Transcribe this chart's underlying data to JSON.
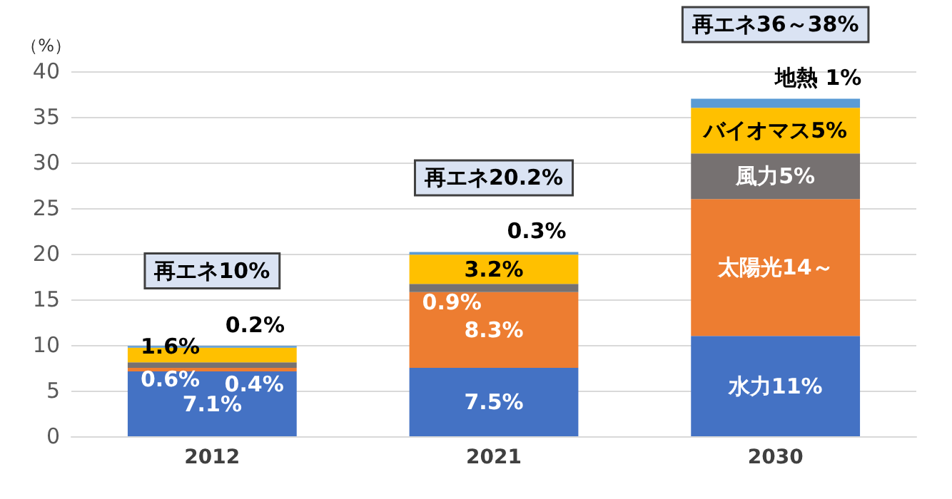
{
  "chart_data": {
    "type": "bar",
    "stacked": true,
    "ylabel": "（%）",
    "categories": [
      "2012",
      "2021",
      "2030"
    ],
    "series": [
      {
        "color": "#4472c4",
        "values": [
          7.1,
          7.5,
          11
        ],
        "value_labels": [
          "7.1%",
          "7.5%",
          "水力11%"
        ]
      },
      {
        "color": "#ed7d31",
        "values": [
          0.4,
          8.3,
          15
        ],
        "value_labels": [
          "0.4%",
          "8.3%",
          "太陽光14～"
        ]
      },
      {
        "color": "#767171",
        "values": [
          0.6,
          0.9,
          5
        ],
        "value_labels": [
          "0.6%",
          "0.9%",
          "風力5%"
        ]
      },
      {
        "color": "#ffc000",
        "values": [
          1.6,
          3.2,
          5
        ],
        "value_labels": [
          "1.6%",
          "3.2%",
          "バイオマス5%"
        ]
      },
      {
        "color": "#5b9bd5",
        "values": [
          0.2,
          0.3,
          1
        ],
        "value_labels": [
          "0.2%",
          "0.3%",
          "地熱 1%"
        ]
      }
    ],
    "ylim": [
      0,
      40
    ],
    "yticks": [
      0,
      5,
      10,
      15,
      20,
      25,
      30,
      35,
      40
    ],
    "grid": "y",
    "annotations": [
      {
        "text": "再エネ10%",
        "x": "2012",
        "y": 10
      },
      {
        "text": "再エネ20.2%",
        "x": "2021",
        "y": 20.2
      },
      {
        "text": "再エネ36～38%",
        "x": "2030",
        "y": 37
      }
    ]
  }
}
